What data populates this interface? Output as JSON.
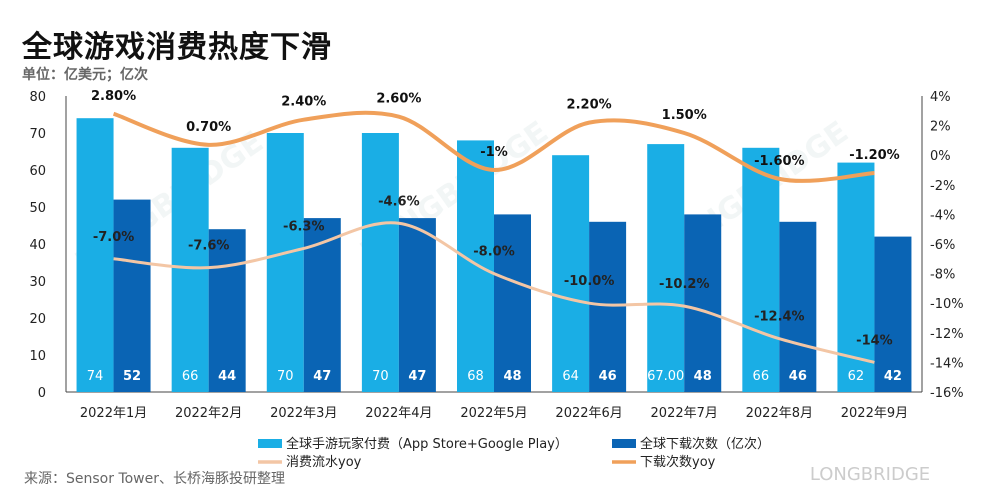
{
  "title": "全球游戏消费热度下滑",
  "unit": "单位：亿美元；亿次",
  "source": "来源：Sensor Tower、长桥海豚投研整理",
  "chart_data": {
    "type": "bar",
    "categories": [
      "2022年1月",
      "2022年2月",
      "2022年3月",
      "2022年4月",
      "2022年5月",
      "2022年6月",
      "2022年7月",
      "2022年8月",
      "2022年9月"
    ],
    "y_left": {
      "ylim": [
        0,
        80
      ],
      "ticks": [
        "0",
        "10",
        "20",
        "30",
        "40",
        "50",
        "60",
        "70",
        "80"
      ]
    },
    "y_right": {
      "ylim": [
        -16,
        4
      ],
      "ticks": [
        "4%",
        "2%",
        "0%",
        "-2%",
        "-4%",
        "-6%",
        "-8%",
        "-10%",
        "-12%",
        "-14%",
        "-16%"
      ]
    },
    "series": [
      {
        "name": "全球手游玩家付费（App Store+Google Play）",
        "type": "bar",
        "axis": "left",
        "color": "#1aaee5",
        "values": [
          74,
          66,
          70,
          70,
          68,
          64,
          67,
          66,
          62
        ],
        "labels": [
          "74",
          "66",
          "70",
          "70",
          "68",
          "64",
          "67.00",
          "66",
          "62"
        ]
      },
      {
        "name": "全球下载次数（亿次）",
        "type": "bar",
        "axis": "left",
        "color": "#0a64b4",
        "values": [
          52,
          44,
          47,
          47,
          48,
          46,
          48,
          46,
          42
        ],
        "labels": [
          "52",
          "44",
          "47",
          "47",
          "48",
          "46",
          "48",
          "46",
          "42"
        ]
      },
      {
        "name": "消费流水yoy",
        "type": "line",
        "axis": "right",
        "color": "#f3c6a5",
        "values": [
          -7.0,
          -7.6,
          -6.3,
          -4.6,
          -8.0,
          -10.0,
          -10.2,
          -12.4,
          -14.0
        ],
        "labels": [
          "-7.0%",
          "-7.6%",
          "-6.3%",
          "-4.6%",
          "-8.0%",
          "-10.0%",
          "-10.2%",
          "-12.4%",
          "-14%"
        ]
      },
      {
        "name": "下载次数yoy",
        "type": "line",
        "axis": "right",
        "color": "#f0a05a",
        "values": [
          2.8,
          0.7,
          2.4,
          2.6,
          -1.0,
          2.2,
          1.5,
          -1.6,
          -1.2
        ],
        "labels": [
          "2.80%",
          "0.70%",
          "2.40%",
          "2.60%",
          "-1%",
          "2.20%",
          "1.50%",
          "-1.60%",
          "-1.20%"
        ]
      }
    ],
    "legend_position": "bottom",
    "watermark": "LONGBRIDGE"
  }
}
